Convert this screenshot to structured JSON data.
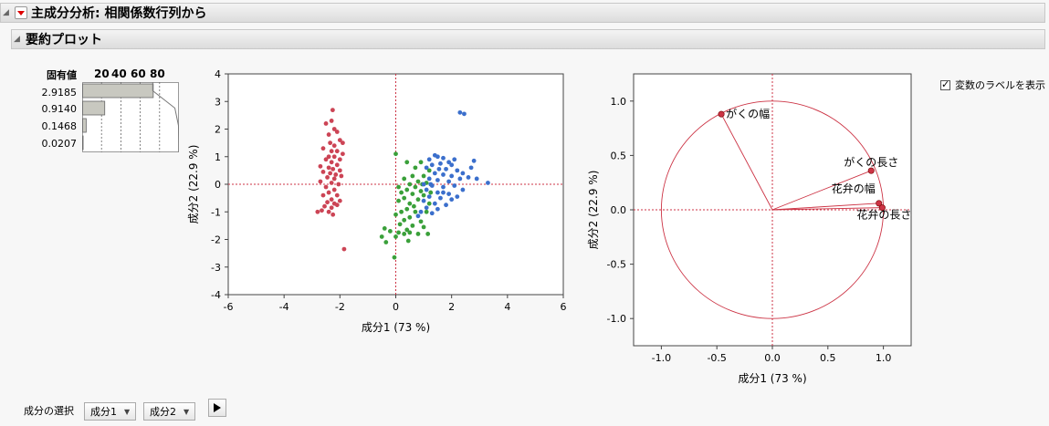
{
  "report": {
    "title": "主成分分析: 相関係数行列から",
    "section_title": "要約プロット"
  },
  "eigen": {
    "header": "固有値",
    "pct_ticks": [
      "20",
      "40",
      "60",
      "80"
    ],
    "values": [
      {
        "label": "2.9185",
        "percent": 72.96
      },
      {
        "label": "0.9140",
        "percent": 22.85
      },
      {
        "label": "0.1468",
        "percent": 3.67
      },
      {
        "label": "0.0207",
        "percent": 0.52
      }
    ],
    "cumulative": [
      72.96,
      95.81,
      99.48,
      100.0
    ]
  },
  "colors": {
    "setosa": "#cc4455",
    "versicolor": "#3aa03a",
    "virginica": "#3b6fcc",
    "loading": "#cc3344",
    "reference": "#cc3344"
  },
  "score_plot": {
    "xlabel": "成分1 (73 %)",
    "ylabel": "成分2 (22.9 %)",
    "xlim": [
      -6,
      6
    ],
    "ylim": [
      -4,
      4
    ],
    "xticks": [
      "-6",
      "-4",
      "-2",
      "0",
      "2",
      "4",
      "6"
    ],
    "yticks": [
      "-4",
      "-3",
      "-2",
      "-1",
      "0",
      "1",
      "2",
      "3",
      "4"
    ]
  },
  "chart_data": {
    "type": "scatter",
    "xlabel": "成分1 (73 %)",
    "ylabel": "成分2 (22.9 %)",
    "xlim": [
      -6,
      6
    ],
    "ylim": [
      -4,
      4
    ],
    "series": [
      {
        "color": "setosa",
        "points": [
          [
            -2.26,
            2.69
          ],
          [
            -2.3,
            2.3
          ],
          [
            -2.5,
            2.2
          ],
          [
            -2.1,
            1.9
          ],
          [
            -2.2,
            2.0
          ],
          [
            -2.4,
            1.8
          ],
          [
            -2.0,
            1.6
          ],
          [
            -1.9,
            1.5
          ],
          [
            -2.35,
            1.5
          ],
          [
            -2.2,
            1.4
          ],
          [
            -2.6,
            1.3
          ],
          [
            -2.1,
            1.2
          ],
          [
            -2.3,
            1.2
          ],
          [
            -1.9,
            1.1
          ],
          [
            -2.4,
            1.0
          ],
          [
            -2.2,
            1.0
          ],
          [
            -2.5,
            0.9
          ],
          [
            -2.0,
            0.9
          ],
          [
            -2.3,
            0.8
          ],
          [
            -2.1,
            0.7
          ],
          [
            -2.7,
            0.65
          ],
          [
            -2.4,
            0.6
          ],
          [
            -2.25,
            0.55
          ],
          [
            -2.0,
            0.5
          ],
          [
            -2.6,
            0.45
          ],
          [
            -2.35,
            0.4
          ],
          [
            -2.15,
            0.35
          ],
          [
            -1.95,
            0.3
          ],
          [
            -2.45,
            0.25
          ],
          [
            -2.2,
            0.2
          ],
          [
            -2.7,
            0.1
          ],
          [
            -2.3,
            0.05
          ],
          [
            -2.05,
            0.0
          ],
          [
            -2.5,
            -0.1
          ],
          [
            -2.2,
            -0.2
          ],
          [
            -2.4,
            -0.3
          ],
          [
            -2.6,
            -0.4
          ],
          [
            -2.1,
            -0.4
          ],
          [
            -2.3,
            -0.55
          ],
          [
            -2.0,
            -0.6
          ],
          [
            -2.45,
            -0.65
          ],
          [
            -2.2,
            -0.7
          ],
          [
            -2.55,
            -0.8
          ],
          [
            -2.3,
            -0.85
          ],
          [
            -2.1,
            -0.75
          ],
          [
            -2.65,
            -0.95
          ],
          [
            -2.4,
            -1.0
          ],
          [
            -2.8,
            -1.0
          ],
          [
            -2.25,
            -1.1
          ],
          [
            -1.85,
            -2.35
          ]
        ]
      },
      {
        "color": "versicolor",
        "points": [
          [
            0.0,
            1.1
          ],
          [
            0.4,
            0.8
          ],
          [
            0.7,
            0.6
          ],
          [
            0.9,
            0.8
          ],
          [
            1.2,
            0.5
          ],
          [
            0.6,
            0.3
          ],
          [
            1.0,
            0.3
          ],
          [
            0.3,
            0.2
          ],
          [
            0.8,
            0.1
          ],
          [
            0.5,
            0.0
          ],
          [
            1.1,
            0.05
          ],
          [
            0.1,
            -0.1
          ],
          [
            0.7,
            -0.1
          ],
          [
            0.4,
            -0.2
          ],
          [
            0.9,
            -0.25
          ],
          [
            0.2,
            -0.3
          ],
          [
            0.6,
            -0.35
          ],
          [
            1.0,
            -0.4
          ],
          [
            0.3,
            -0.5
          ],
          [
            0.8,
            -0.55
          ],
          [
            0.1,
            -0.6
          ],
          [
            0.5,
            -0.7
          ],
          [
            1.2,
            -0.7
          ],
          [
            0.4,
            -0.9
          ],
          [
            0.2,
            -1.0
          ],
          [
            0.7,
            -1.0
          ],
          [
            1.1,
            -1.0
          ],
          [
            0.0,
            -1.1
          ],
          [
            0.5,
            -1.2
          ],
          [
            0.3,
            -1.3
          ],
          [
            0.9,
            -1.35
          ],
          [
            0.15,
            -1.45
          ],
          [
            0.6,
            -1.5
          ],
          [
            1.0,
            -1.55
          ],
          [
            0.4,
            -1.65
          ],
          [
            -0.4,
            -1.6
          ],
          [
            -0.2,
            -1.7
          ],
          [
            0.1,
            -1.75
          ],
          [
            0.3,
            -1.8
          ],
          [
            0.8,
            -1.8
          ],
          [
            -0.5,
            -1.9
          ],
          [
            0.0,
            -1.9
          ],
          [
            0.5,
            -1.75
          ],
          [
            1.15,
            -1.8
          ],
          [
            -0.35,
            -2.1
          ],
          [
            0.45,
            -2.05
          ],
          [
            -0.05,
            -2.65
          ],
          [
            0.65,
            -0.8
          ],
          [
            0.95,
            0.0
          ],
          [
            1.25,
            -0.3
          ]
        ]
      },
      {
        "color": "virginica",
        "points": [
          [
            2.3,
            2.6
          ],
          [
            2.45,
            2.55
          ],
          [
            1.4,
            1.05
          ],
          [
            1.5,
            1.0
          ],
          [
            1.7,
            0.95
          ],
          [
            1.2,
            0.9
          ],
          [
            1.9,
            0.8
          ],
          [
            2.1,
            0.9
          ],
          [
            2.8,
            0.85
          ],
          [
            1.3,
            0.7
          ],
          [
            1.6,
            0.75
          ],
          [
            2.0,
            0.7
          ],
          [
            1.1,
            0.6
          ],
          [
            1.8,
            0.55
          ],
          [
            2.2,
            0.5
          ],
          [
            2.7,
            0.6
          ],
          [
            1.4,
            0.4
          ],
          [
            1.7,
            0.35
          ],
          [
            2.0,
            0.3
          ],
          [
            2.4,
            0.4
          ],
          [
            1.2,
            0.2
          ],
          [
            1.5,
            0.15
          ],
          [
            1.9,
            0.1
          ],
          [
            2.3,
            0.2
          ],
          [
            2.6,
            0.25
          ],
          [
            3.3,
            0.05
          ],
          [
            1.0,
            0.0
          ],
          [
            1.3,
            -0.05
          ],
          [
            1.7,
            -0.1
          ],
          [
            2.1,
            -0.05
          ],
          [
            2.9,
            0.2
          ],
          [
            1.1,
            -0.2
          ],
          [
            1.5,
            -0.3
          ],
          [
            1.9,
            -0.35
          ],
          [
            2.4,
            -0.2
          ],
          [
            1.2,
            -0.45
          ],
          [
            1.6,
            -0.5
          ],
          [
            2.0,
            -0.55
          ],
          [
            1.0,
            -0.6
          ],
          [
            1.4,
            -0.7
          ],
          [
            1.8,
            -0.75
          ],
          [
            1.1,
            -0.85
          ],
          [
            1.5,
            -0.9
          ],
          [
            0.9,
            -1.0
          ],
          [
            1.3,
            -1.05
          ],
          [
            0.8,
            -1.15
          ],
          [
            1.7,
            -0.3
          ],
          [
            2.2,
            -0.45
          ],
          [
            1.25,
            0.0
          ],
          [
            1.55,
            0.55
          ]
        ]
      }
    ]
  },
  "loading_plot": {
    "xlabel": "成分1 (73 %)",
    "ylabel": "成分2 (22.9 %)",
    "xlim": [
      -1.25,
      1.25
    ],
    "ylim": [
      -1.25,
      1.25
    ],
    "xticks": [
      "-1.0",
      "-0.5",
      "0.0",
      "0.5",
      "1.0"
    ],
    "yticks": [
      "-1.0",
      "-0.5",
      "0.0",
      "0.5",
      "1.0"
    ],
    "points": [
      {
        "label": "がくの幅",
        "x": -0.46,
        "y": 0.88
      },
      {
        "label": "がくの長さ",
        "x": 0.89,
        "y": 0.36
      },
      {
        "label": "花弁の幅",
        "x": 0.96,
        "y": 0.06
      },
      {
        "label": "花弁の長さ",
        "x": 0.99,
        "y": 0.02
      }
    ]
  },
  "options": {
    "show_labels_text": "変数のラベルを表示",
    "show_labels_checked": true
  },
  "component_select": {
    "label": "成分の選択",
    "first": "成分1",
    "second": "成分2"
  }
}
